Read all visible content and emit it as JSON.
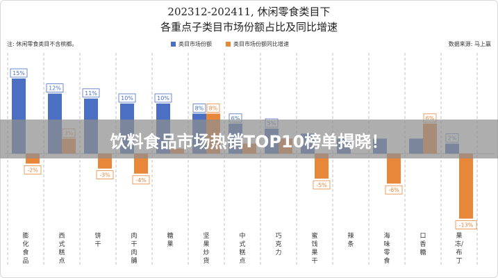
{
  "title_line1": "202312-202411, 休闲零食类目下",
  "title_line2": "各重点子类目市场份额占比及同比增速",
  "note": "注: 休闲零食类目不含槟榔。",
  "source": "数据来源: 马上赢",
  "banner": "饮料食品市场热销TOP10榜单揭晓！",
  "colors": {
    "share": "#4a6fc3",
    "growth": "#e8863a",
    "banner_bg": "#8f8f8f"
  },
  "chart_data": {
    "type": "bar",
    "categories": [
      "膨化食品",
      "西式糕点",
      "饼干",
      "肉干肉脯",
      "糖果",
      "坚果炒货",
      "中式糕点",
      "巧克力",
      "蜜饯果干",
      "辣条",
      "海味零食",
      "口香糖",
      "果冻/布丁"
    ],
    "series": [
      {
        "name": "类目市场份额",
        "values": [
          15,
          12,
          11,
          10,
          10,
          8,
          6,
          5,
          4,
          3,
          3,
          3,
          2
        ],
        "labels": [
          "15%",
          "12%",
          "11%",
          "10%",
          "10%",
          "8%",
          "6%",
          "5%",
          "",
          "",
          "",
          "",
          "2%"
        ]
      },
      {
        "name": "类目市场份额同比增速",
        "values": [
          -2,
          3,
          -3,
          -4,
          1,
          8,
          2,
          3,
          -5,
          0,
          -6,
          6,
          -13
        ],
        "labels": [
          "-2%",
          "3%",
          "-3%",
          "-4%",
          "",
          "8%",
          "",
          "",
          "-5%",
          "",
          "-6%",
          "6%",
          "-13%"
        ]
      }
    ],
    "ylim": [
      -14,
      16
    ],
    "grid": false,
    "legend_position": "top-center"
  }
}
